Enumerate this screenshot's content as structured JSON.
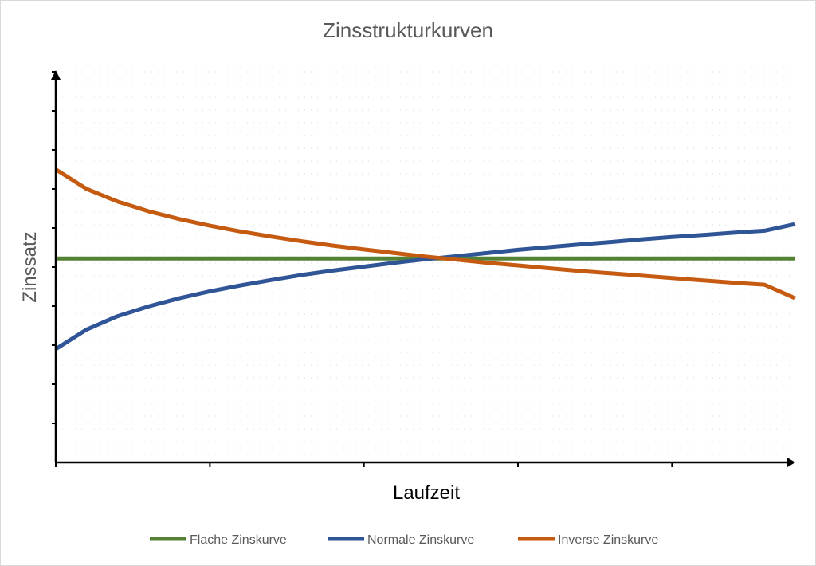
{
  "chart_data": {
    "type": "line",
    "title": "Zinsstrukturkurven",
    "xlabel": "Laufzeit",
    "ylabel": "Zinssatz",
    "xlim": [
      0,
      24
    ],
    "ylim": [
      0,
      10
    ],
    "x": [
      0,
      1,
      2,
      3,
      4,
      5,
      6,
      7,
      8,
      9,
      10,
      11,
      12,
      13,
      14,
      15,
      16,
      17,
      18,
      19,
      20,
      21,
      22,
      23,
      24
    ],
    "grid": "dotted",
    "legend_position": "bottom",
    "series": [
      {
        "name": "Flache Zinskurve",
        "color": "#548235",
        "values": [
          5.22,
          5.22,
          5.22,
          5.22,
          5.22,
          5.22,
          5.22,
          5.22,
          5.22,
          5.22,
          5.22,
          5.22,
          5.22,
          5.22,
          5.22,
          5.22,
          5.22,
          5.22,
          5.22,
          5.22,
          5.22,
          5.22,
          5.22,
          5.22,
          5.22
        ]
      },
      {
        "name": "Normale Zinskurve",
        "color": "#2F5597",
        "values": [
          2.9,
          3.4,
          3.74,
          3.99,
          4.2,
          4.38,
          4.53,
          4.67,
          4.8,
          4.91,
          5.01,
          5.11,
          5.2,
          5.28,
          5.36,
          5.44,
          5.51,
          5.58,
          5.64,
          5.71,
          5.77,
          5.82,
          5.88,
          5.93,
          6.1
        ]
      },
      {
        "name": "Inverse Zinskurve",
        "color": "#C55A11",
        "values": [
          7.5,
          7.0,
          6.68,
          6.43,
          6.23,
          6.06,
          5.91,
          5.78,
          5.66,
          5.55,
          5.45,
          5.36,
          5.27,
          5.19,
          5.11,
          5.04,
          4.97,
          4.9,
          4.84,
          4.78,
          4.72,
          4.66,
          4.6,
          4.55,
          4.2
        ]
      }
    ]
  }
}
